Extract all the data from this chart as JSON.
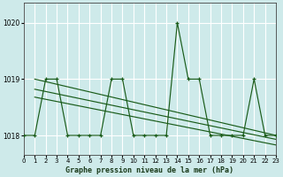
{
  "title": "Graphe pression niveau de la mer (hPa)",
  "bg_color": "#ceeaea",
  "grid_color": "#ffffff",
  "line_color": "#1a5c1a",
  "xlim": [
    0,
    23
  ],
  "ylim": [
    1017.65,
    1020.35
  ],
  "yticks": [
    1018,
    1019,
    1020
  ],
  "xticks": [
    0,
    1,
    2,
    3,
    4,
    5,
    6,
    7,
    8,
    9,
    10,
    11,
    12,
    13,
    14,
    15,
    16,
    17,
    18,
    19,
    20,
    21,
    22,
    23
  ],
  "main_x": [
    0,
    1,
    2,
    3,
    4,
    5,
    6,
    7,
    8,
    9,
    10,
    11,
    12,
    13,
    14,
    15,
    16,
    17,
    18,
    19,
    20,
    21,
    22,
    23
  ],
  "main_y": [
    1018,
    1018,
    1019,
    1019,
    1018,
    1018,
    1018,
    1018,
    1019,
    1019,
    1018,
    1018,
    1018,
    1018,
    1020,
    1019,
    1019,
    1018,
    1018,
    1018,
    1018,
    1019,
    1018,
    1018
  ],
  "trend1_x": [
    1,
    23
  ],
  "trend1_y": [
    1019.0,
    1018.0
  ],
  "trend2_x": [
    1,
    23
  ],
  "trend2_y": [
    1018.82,
    1017.93
  ],
  "trend3_x": [
    1,
    23
  ],
  "trend3_y": [
    1018.68,
    1017.83
  ]
}
